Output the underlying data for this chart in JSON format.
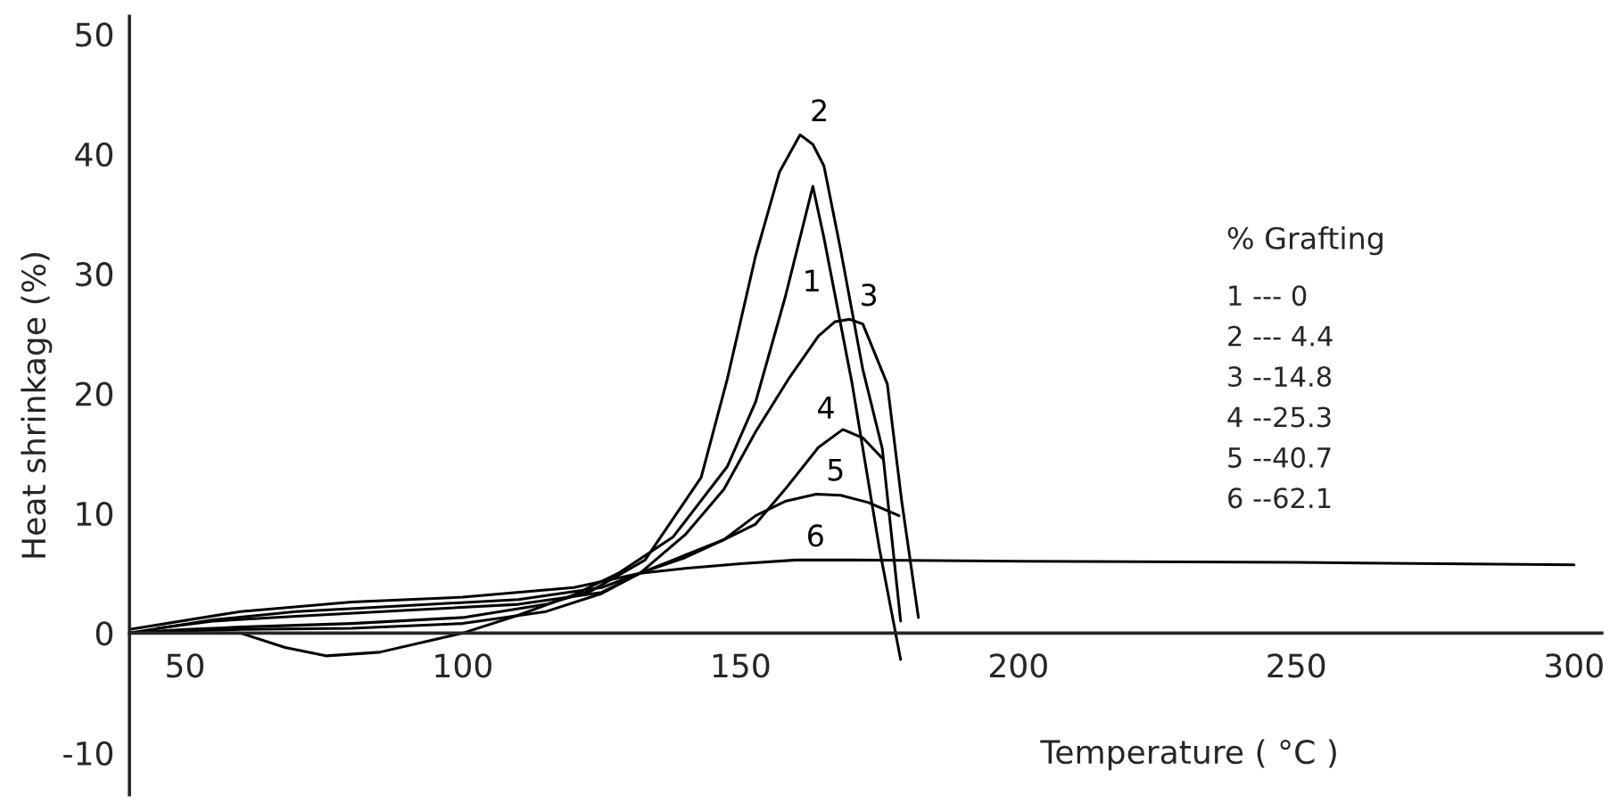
{
  "chart_data": {
    "type": "line",
    "xlabel": "Temperature ( °C )",
    "ylabel": "Heat shrinkage (%)",
    "xlim": [
      40,
      305
    ],
    "ylim": [
      -13.5,
      51.5
    ],
    "xticks": [
      50,
      100,
      150,
      200,
      250,
      300
    ],
    "yticks": [
      -10,
      0,
      10,
      20,
      30,
      40,
      50
    ],
    "grid": false,
    "marker": "none",
    "line_style": "solid",
    "series": [
      {
        "name": "1",
        "color": "#000000",
        "x": [
          40,
          50,
          60,
          68,
          75.5,
          85,
          100,
          110,
          120,
          128,
          137.8,
          147.6,
          152.7,
          158,
          161.5,
          163,
          165,
          170,
          175,
          178.8
        ],
        "values": [
          0,
          0,
          0,
          -1.2,
          -1.9,
          -1.6,
          0,
          1.5,
          3.2,
          5,
          8,
          13.9,
          19.3,
          28,
          34.5,
          37.3,
          33,
          21,
          7,
          -2.2
        ]
      },
      {
        "name": "2",
        "color": "#000000",
        "x": [
          40,
          50,
          60,
          80,
          100,
          115,
          123,
          132.8,
          142.9,
          147.6,
          152.7,
          157,
          160.7,
          163,
          165,
          168,
          172,
          175.5,
          178.8
        ],
        "values": [
          0,
          0.3,
          0.5,
          0.8,
          1.3,
          2.4,
          3.5,
          6.1,
          13,
          21.2,
          31.5,
          38.5,
          41.6,
          40.8,
          39,
          32,
          22,
          15.4,
          1
        ]
      },
      {
        "name": "3",
        "color": "#000000",
        "x": [
          40,
          50,
          60,
          80,
          100,
          115,
          125,
          131.9,
          140,
          147,
          152.7,
          158.6,
          164,
          167,
          169.6,
          172,
          176.4,
          179,
          182
        ],
        "values": [
          0,
          0.2,
          0.3,
          0.4,
          0.8,
          1.8,
          3.3,
          5,
          8.2,
          12,
          16.8,
          21.2,
          24.8,
          26,
          26.2,
          25.8,
          20.8,
          11,
          1.3
        ]
      },
      {
        "name": "4",
        "color": "#000000",
        "x": [
          45,
          55,
          70,
          90,
          110,
          125,
          131.9,
          140,
          147,
          152.7,
          158,
          164,
          168.4,
          172,
          175.5
        ],
        "values": [
          0.4,
          1,
          1.4,
          1.9,
          2.4,
          3.4,
          5,
          6.5,
          7.8,
          9.1,
          12,
          15.5,
          17,
          16.3,
          14.6
        ]
      },
      {
        "name": "5",
        "color": "#000000",
        "x": [
          40,
          55,
          70,
          90,
          110,
          125,
          131.9,
          140,
          147,
          152.7,
          158,
          163.6,
          168,
          173,
          178.5
        ],
        "values": [
          0,
          1.1,
          1.8,
          2.3,
          2.8,
          3.8,
          5,
          6.3,
          7.8,
          9.8,
          11,
          11.6,
          11.5,
          10.9,
          9.8
        ]
      },
      {
        "name": "6",
        "color": "#000000",
        "x": [
          40,
          60,
          80,
          100,
          120,
          131.9,
          140,
          150,
          160,
          170,
          200,
          250,
          300
        ],
        "values": [
          0.3,
          1.8,
          2.6,
          3,
          3.8,
          5,
          5.4,
          5.8,
          6.1,
          6.1,
          6,
          5.9,
          5.7
        ]
      }
    ],
    "annotations": [
      "% Grafting",
      "1 --- 0",
      "2 --- 4.4",
      "3 --14.8",
      "4 --25.3",
      "5 --40.7",
      "6 --62.1"
    ]
  }
}
